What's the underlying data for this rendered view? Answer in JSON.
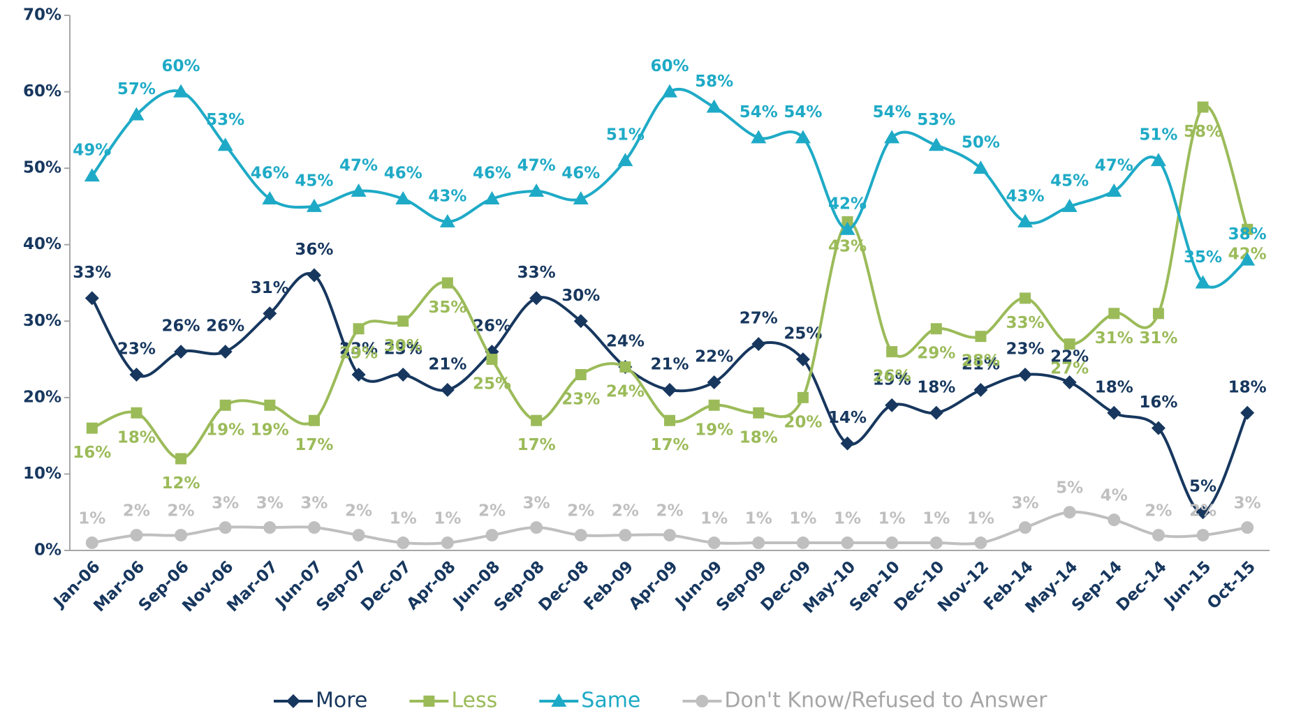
{
  "chart_data": {
    "type": "line",
    "categories": [
      "Jan-06",
      "Mar-06",
      "Sep-06",
      "Nov-06",
      "Mar-07",
      "Jun-07",
      "Sep-07",
      "Dec-07",
      "Apr-08",
      "Jun-08",
      "Sep-08",
      "Dec-08",
      "Feb-09",
      "Apr-09",
      "Jun-09",
      "Sep-09",
      "Dec-09",
      "May-10",
      "Sep-10",
      "Dec-10",
      "Nov-12",
      "Feb-14",
      "May-14",
      "Sep-14",
      "Dec-14",
      "Jun-15",
      "Oct-15"
    ],
    "series": [
      {
        "name": "More",
        "color": "#17375e",
        "marker": "diamond",
        "values": [
          33,
          23,
          26,
          26,
          31,
          36,
          23,
          23,
          21,
          26,
          33,
          30,
          24,
          21,
          22,
          27,
          25,
          14,
          19,
          18,
          21,
          23,
          22,
          18,
          16,
          5,
          18
        ],
        "value_labels": [
          "33%",
          "23%",
          "26%",
          "26%",
          "31%",
          "36%",
          "23%",
          "23%",
          "21%",
          "26%",
          "33%",
          "30%",
          "24%",
          "21%",
          "22%",
          "27%",
          "25%",
          "14%",
          "19%",
          "18%",
          "21%",
          "23%",
          "22%",
          "18%",
          "16%",
          "5%",
          "18%"
        ]
      },
      {
        "name": "Less",
        "color": "#9bbb59",
        "marker": "square",
        "values": [
          16,
          18,
          12,
          19,
          19,
          17,
          29,
          30,
          35,
          25,
          17,
          23,
          24,
          17,
          19,
          18,
          20,
          43,
          26,
          29,
          28,
          33,
          27,
          31,
          31,
          58,
          42
        ],
        "value_labels": [
          "16%",
          "18%",
          "12%",
          "19%",
          "19%",
          "17%",
          "29%",
          "30%",
          "35%",
          "25%",
          "17%",
          "23%",
          "24%",
          "17%",
          "19%",
          "18%",
          "20%",
          "43%",
          "26%",
          "29%",
          "28%",
          "33%",
          "27%",
          "31%",
          "31%",
          "58%",
          "42%"
        ]
      },
      {
        "name": "Same",
        "color": "#1eaac6",
        "marker": "triangle",
        "values": [
          49,
          57,
          60,
          53,
          46,
          45,
          47,
          46,
          43,
          46,
          47,
          46,
          51,
          60,
          58,
          54,
          54,
          42,
          54,
          53,
          50,
          43,
          45,
          47,
          51,
          35,
          38
        ],
        "value_labels": [
          "49%",
          "57%",
          "60%",
          "53%",
          "46%",
          "45%",
          "47%",
          "46%",
          "43%",
          "46%",
          "47%",
          "46%",
          "51%",
          "60%",
          "58%",
          "54%",
          "54%",
          "42%",
          "54%",
          "53%",
          "50%",
          "43%",
          "45%",
          "47%",
          "51%",
          "35%",
          "38%"
        ]
      },
      {
        "name": "Don't Know/Refused to Answer",
        "color": "#bfbfbf",
        "marker": "circle",
        "values": [
          1,
          2,
          2,
          3,
          3,
          3,
          2,
          1,
          1,
          2,
          3,
          2,
          2,
          2,
          1,
          1,
          1,
          1,
          1,
          1,
          1,
          3,
          5,
          4,
          2,
          2,
          3
        ],
        "value_labels": [
          "1%",
          "2%",
          "2%",
          "3%",
          "3%",
          "3%",
          "2%",
          "1%",
          "1%",
          "2%",
          "3%",
          "2%",
          "2%",
          "2%",
          "1%",
          "1%",
          "1%",
          "1%",
          "1%",
          "1%",
          "1%",
          "3%",
          "5%",
          "4%",
          "2%",
          "2%",
          "3%"
        ]
      }
    ],
    "ylim": [
      0,
      70
    ],
    "yticks": [
      {
        "value": 0,
        "label": "0%"
      },
      {
        "value": 10,
        "label": "10%"
      },
      {
        "value": 20,
        "label": "20%"
      },
      {
        "value": 30,
        "label": "30%"
      },
      {
        "value": 40,
        "label": "40%"
      },
      {
        "value": 50,
        "label": "50%"
      },
      {
        "value": 60,
        "label": "60%"
      },
      {
        "value": 70,
        "label": "70%"
      }
    ],
    "legend": "bottom"
  }
}
